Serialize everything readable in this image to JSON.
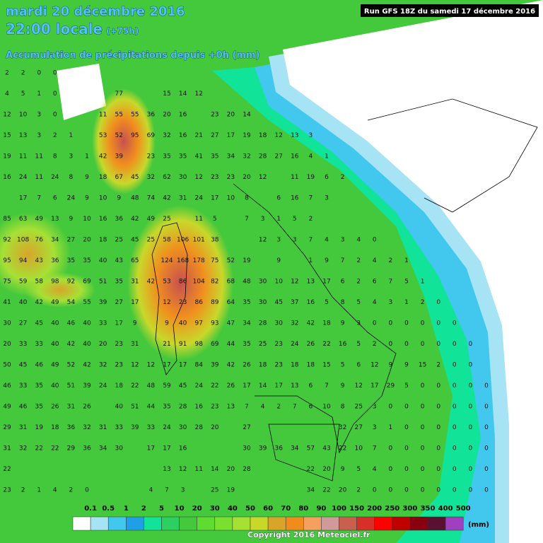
{
  "header": {
    "date": "mardi 20 décembre 2016",
    "time": "22:00 locale",
    "lead": "(+75h)",
    "subtitle": "Accumulation de précipitations depuis +0h (mm)",
    "run": "Run GFS 18Z du samedi 17 décembre 2016"
  },
  "grid": {
    "rows": [
      [
        2,
        2,
        0,
        0,
        null,
        null,
        null,
        null,
        null,
        null,
        null,
        null,
        null,
        null,
        null,
        null,
        null,
        null,
        null,
        null,
        null,
        null,
        null,
        null,
        null,
        null,
        null,
        null,
        null,
        null,
        null,
        null,
        null
      ],
      [
        4,
        5,
        1,
        0,
        null,
        null,
        null,
        77,
        null,
        null,
        15,
        14,
        12,
        null,
        null,
        null,
        null,
        null,
        null,
        null,
        null,
        null,
        null,
        null,
        null,
        null,
        null,
        null,
        null,
        null,
        null,
        null,
        null
      ],
      [
        12,
        10,
        3,
        0,
        null,
        null,
        11,
        55,
        55,
        36,
        20,
        16,
        null,
        23,
        20,
        14,
        null,
        null,
        null,
        null,
        null,
        null,
        null,
        null,
        null,
        null,
        null,
        null,
        null,
        null,
        null,
        null,
        null
      ],
      [
        15,
        13,
        3,
        2,
        1,
        null,
        53,
        52,
        95,
        69,
        32,
        16,
        21,
        27,
        17,
        19,
        18,
        12,
        13,
        3,
        null,
        null,
        null,
        null,
        null,
        null,
        null,
        null,
        null,
        null,
        null,
        null,
        null
      ],
      [
        19,
        11,
        11,
        8,
        3,
        1,
        42,
        39,
        null,
        23,
        35,
        35,
        41,
        35,
        34,
        32,
        28,
        27,
        16,
        4,
        1,
        null,
        null,
        null,
        null,
        null,
        null,
        null,
        null,
        null,
        null,
        null,
        null
      ],
      [
        16,
        24,
        11,
        24,
        8,
        9,
        18,
        67,
        45,
        32,
        62,
        30,
        12,
        23,
        23,
        20,
        12,
        null,
        11,
        19,
        6,
        2,
        null,
        null,
        null,
        null,
        null,
        null,
        null,
        null,
        null,
        null,
        null
      ],
      [
        null,
        17,
        7,
        6,
        24,
        9,
        10,
        9,
        48,
        74,
        42,
        31,
        24,
        17,
        10,
        8,
        null,
        6,
        16,
        7,
        3,
        null,
        null,
        null,
        null,
        null,
        null,
        null,
        null,
        null,
        null,
        null,
        null
      ],
      [
        85,
        63,
        49,
        13,
        9,
        10,
        16,
        36,
        42,
        49,
        25,
        null,
        11,
        5,
        null,
        7,
        3,
        1,
        5,
        2,
        null,
        null,
        null,
        null,
        null,
        null,
        null,
        null,
        null,
        null,
        null,
        null,
        null
      ],
      [
        92,
        108,
        76,
        34,
        27,
        20,
        18,
        25,
        45,
        25,
        58,
        106,
        101,
        38,
        null,
        null,
        12,
        3,
        3,
        7,
        4,
        3,
        4,
        0,
        null,
        null,
        null,
        null,
        null,
        null,
        null,
        null,
        null
      ],
      [
        95,
        94,
        43,
        36,
        35,
        35,
        40,
        43,
        65,
        null,
        124,
        168,
        178,
        75,
        52,
        19,
        null,
        9,
        null,
        1,
        9,
        7,
        2,
        4,
        2,
        1,
        null,
        null,
        null,
        null,
        null,
        null,
        null
      ],
      [
        75,
        59,
        58,
        98,
        92,
        69,
        51,
        35,
        31,
        42,
        53,
        86,
        104,
        82,
        68,
        48,
        30,
        10,
        12,
        13,
        17,
        6,
        2,
        6,
        7,
        5,
        1,
        null,
        null,
        null,
        null,
        null,
        null
      ],
      [
        41,
        40,
        42,
        49,
        54,
        55,
        39,
        27,
        17,
        null,
        12,
        23,
        86,
        89,
        64,
        35,
        30,
        45,
        37,
        16,
        5,
        8,
        5,
        4,
        3,
        1,
        2,
        0,
        null,
        null,
        null,
        null,
        null
      ],
      [
        30,
        27,
        45,
        40,
        46,
        40,
        33,
        17,
        9,
        null,
        9,
        40,
        97,
        93,
        47,
        34,
        28,
        30,
        32,
        42,
        18,
        9,
        3,
        0,
        0,
        0,
        0,
        0,
        0,
        null,
        null,
        null,
        null
      ],
      [
        20,
        33,
        33,
        40,
        42,
        40,
        20,
        23,
        31,
        null,
        21,
        91,
        98,
        69,
        44,
        35,
        25,
        23,
        24,
        26,
        22,
        16,
        5,
        2,
        0,
        0,
        0,
        0,
        0,
        0,
        null,
        null,
        null
      ],
      [
        50,
        45,
        46,
        49,
        52,
        42,
        32,
        23,
        12,
        12,
        17,
        17,
        84,
        39,
        42,
        26,
        18,
        23,
        18,
        18,
        15,
        5,
        6,
        12,
        9,
        9,
        15,
        2,
        0,
        0,
        null,
        null,
        null
      ],
      [
        46,
        33,
        35,
        40,
        51,
        39,
        24,
        18,
        22,
        48,
        59,
        45,
        24,
        22,
        26,
        17,
        14,
        17,
        13,
        6,
        7,
        9,
        12,
        17,
        29,
        5,
        0,
        0,
        0,
        0,
        0,
        null,
        null
      ],
      [
        49,
        46,
        35,
        26,
        31,
        26,
        null,
        40,
        51,
        44,
        35,
        28,
        16,
        23,
        13,
        7,
        4,
        2,
        7,
        6,
        10,
        8,
        25,
        3,
        0,
        0,
        0,
        0,
        0,
        0,
        0,
        null,
        null
      ],
      [
        29,
        31,
        19,
        18,
        36,
        32,
        31,
        33,
        39,
        33,
        24,
        30,
        28,
        20,
        null,
        27,
        null,
        null,
        null,
        null,
        null,
        32,
        27,
        3,
        1,
        0,
        0,
        0,
        0,
        0,
        0,
        null,
        null
      ],
      [
        31,
        32,
        22,
        22,
        29,
        36,
        34,
        30,
        null,
        17,
        17,
        16,
        null,
        null,
        null,
        30,
        39,
        36,
        34,
        57,
        43,
        22,
        10,
        7,
        0,
        0,
        0,
        0,
        0,
        0,
        0,
        null,
        null
      ],
      [
        22,
        null,
        null,
        null,
        null,
        null,
        null,
        null,
        null,
        null,
        13,
        12,
        11,
        14,
        20,
        28,
        null,
        null,
        null,
        22,
        20,
        9,
        5,
        4,
        0,
        0,
        0,
        0,
        0,
        0,
        0,
        null,
        null
      ],
      [
        23,
        2,
        1,
        4,
        2,
        0,
        null,
        null,
        null,
        4,
        7,
        3,
        null,
        25,
        19,
        null,
        null,
        null,
        null,
        34,
        22,
        20,
        2,
        0,
        0,
        0,
        0,
        0,
        0,
        0,
        0,
        null,
        null
      ]
    ]
  },
  "legend": {
    "labels": [
      "0.1",
      "0.5",
      1,
      2,
      5,
      10,
      20,
      30,
      40,
      50,
      60,
      70,
      80,
      90,
      100,
      150,
      200,
      250,
      300,
      350,
      400,
      500
    ],
    "colors": [
      "#ffffff",
      "#a6e4f5",
      "#42c8ee",
      "#1e9fe6",
      "#11e398",
      "#2bd060",
      "#44c83c",
      "#5fdc32",
      "#7ae030",
      "#a7e035",
      "#c8d82b",
      "#d9a42a",
      "#f08c1e",
      "#f5a060",
      "#d09a9a",
      "#c86050",
      "#d83028",
      "#ff0000",
      "#c00000",
      "#8a0010",
      "#5a1030",
      "#a040c0"
    ],
    "unit": "(mm)"
  },
  "footer": {
    "copyright": "Copyright 2016 Meteociel.fr"
  }
}
